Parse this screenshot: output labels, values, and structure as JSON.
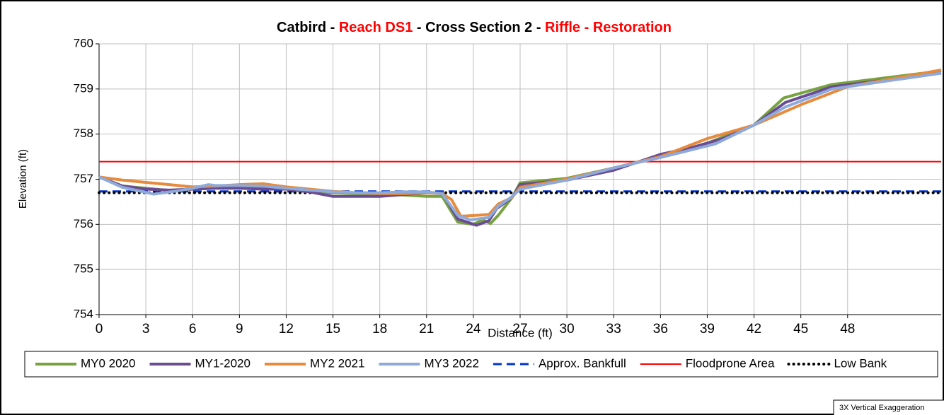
{
  "chart_data": {
    "type": "line",
    "title_parts": [
      {
        "text": "Catbird - ",
        "color": "#000000"
      },
      {
        "text": "Reach DS1",
        "color": "#ff0000"
      },
      {
        "text": " - Cross Section 2 - ",
        "color": "#000000"
      },
      {
        "text": "Riffle - Restoration",
        "color": "#ff0000"
      }
    ],
    "x_label": "Distance (ft)",
    "y_label": "Elevation (ft)",
    "note": "3X Vertical Exaggeration",
    "xlim": [
      0,
      54
    ],
    "ylim": [
      754,
      760
    ],
    "xticks": [
      0,
      3,
      6,
      9,
      12,
      15,
      18,
      21,
      24,
      27,
      30,
      33,
      36,
      39,
      42,
      45,
      48
    ],
    "yticks": [
      754,
      755,
      756,
      757,
      758,
      759,
      760
    ],
    "grid": true,
    "legend": "bottom",
    "series": [
      {
        "name": "MY0 2020",
        "color": "#77a33e",
        "style": "solid",
        "width": 4,
        "x": [
          0,
          1.5,
          3,
          4.5,
          6,
          7.5,
          9,
          10.5,
          12,
          13.5,
          15,
          16.5,
          18,
          19.5,
          21,
          22,
          23,
          24,
          24.6,
          25.1,
          25.6,
          26.5,
          27,
          30,
          33,
          36,
          39,
          42,
          43.9,
          47,
          54
        ],
        "values": [
          757.05,
          756.85,
          756.8,
          756.75,
          756.78,
          756.82,
          756.82,
          756.8,
          756.78,
          756.72,
          756.7,
          756.68,
          756.67,
          756.65,
          756.62,
          756.62,
          756.05,
          756.0,
          756.1,
          756.02,
          756.2,
          756.6,
          756.92,
          757.02,
          757.25,
          757.5,
          757.8,
          758.2,
          758.8,
          759.1,
          759.4
        ]
      },
      {
        "name": "MY1-2020",
        "color": "#6a4c93",
        "style": "solid",
        "width": 4,
        "x": [
          0,
          1.5,
          3,
          4.5,
          6,
          7.5,
          9,
          10.5,
          12,
          13.5,
          15,
          16.5,
          18,
          19.5,
          21,
          22,
          23,
          24.2,
          25,
          25.5,
          26.5,
          27,
          30,
          33,
          36,
          38,
          40,
          42,
          44,
          47,
          54
        ],
        "values": [
          757.05,
          756.85,
          756.78,
          756.76,
          756.78,
          756.8,
          756.8,
          756.78,
          756.78,
          756.72,
          756.62,
          756.62,
          756.62,
          756.66,
          756.7,
          756.7,
          756.12,
          755.98,
          756.08,
          756.35,
          756.6,
          756.88,
          756.98,
          757.2,
          757.55,
          757.7,
          757.9,
          758.2,
          758.7,
          759.05,
          759.35
        ]
      },
      {
        "name": "MY2 2021",
        "color": "#e68a3c",
        "style": "solid",
        "width": 4,
        "x": [
          0,
          1.5,
          3,
          4.5,
          6,
          7.5,
          9,
          10.5,
          12,
          13.5,
          15,
          16.5,
          18,
          19.5,
          21,
          22,
          22.6,
          23.2,
          24.2,
          25,
          25.6,
          26.5,
          27,
          30,
          33,
          36,
          39,
          42,
          45,
          48,
          54
        ],
        "values": [
          757.05,
          756.98,
          756.93,
          756.88,
          756.83,
          756.85,
          756.88,
          756.9,
          756.83,
          756.78,
          756.73,
          756.7,
          756.68,
          756.68,
          756.7,
          756.68,
          756.55,
          756.18,
          756.2,
          756.22,
          756.45,
          756.6,
          756.82,
          757.0,
          757.25,
          757.5,
          757.9,
          758.2,
          758.65,
          759.05,
          759.42
        ]
      },
      {
        "name": "MY3 2022",
        "color": "#8eaadb",
        "style": "solid",
        "width": 4,
        "x": [
          0,
          1.5,
          3.5,
          5,
          6,
          7,
          7.5,
          9,
          10.5,
          12,
          13.5,
          15,
          16.5,
          18,
          19.5,
          21,
          22,
          23,
          23.8,
          25,
          25.6,
          26.5,
          27,
          30,
          33,
          36,
          39.5,
          42,
          44,
          47,
          54
        ],
        "values": [
          757.05,
          756.82,
          756.67,
          756.74,
          756.8,
          756.88,
          756.86,
          756.86,
          756.85,
          756.8,
          756.76,
          756.72,
          756.7,
          756.7,
          756.72,
          756.72,
          756.68,
          756.2,
          756.1,
          756.15,
          756.4,
          756.62,
          756.78,
          756.98,
          757.25,
          757.48,
          757.78,
          758.2,
          758.6,
          759.0,
          759.35
        ]
      },
      {
        "name": "Approx. Bankfull",
        "color": "#0033cc",
        "style": "dashed",
        "width": 3,
        "x": [
          0,
          54
        ],
        "values": [
          756.73,
          756.73
        ]
      },
      {
        "name": "Floodprone Area",
        "color": "#ff0000",
        "style": "solid",
        "width": 2,
        "x": [
          0,
          54
        ],
        "values": [
          757.39,
          757.39
        ]
      },
      {
        "name": "Low Bank",
        "color": "#000000",
        "style": "dotted",
        "width": 4,
        "x": [
          0,
          54
        ],
        "values": [
          756.7,
          756.7
        ]
      }
    ]
  }
}
